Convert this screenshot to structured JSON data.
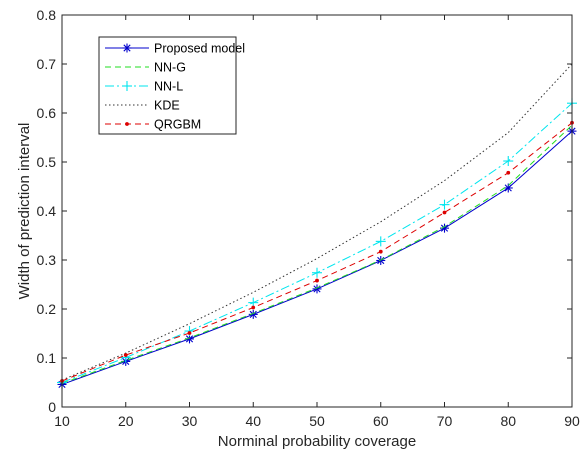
{
  "chart_data": {
    "type": "line",
    "title": "",
    "xlabel": "Norminal probability coverage",
    "ylabel": "Width of prediction interval",
    "x": [
      10,
      20,
      30,
      40,
      50,
      60,
      70,
      80,
      90
    ],
    "xlim": [
      10,
      90
    ],
    "ylim": [
      0,
      0.8
    ],
    "xticks": [
      "10",
      "20",
      "30",
      "40",
      "50",
      "60",
      "70",
      "80",
      "90"
    ],
    "yticks": [
      "0",
      "0.1",
      "0.2",
      "0.3",
      "0.4",
      "0.5",
      "0.6",
      "0.7",
      "0.8"
    ],
    "grid": false,
    "legend_position": "top-left",
    "series": [
      {
        "name": "Proposed model",
        "color": "#0000cc",
        "line": "solid",
        "marker": "asterisk",
        "values": [
          0.046,
          0.093,
          0.139,
          0.189,
          0.241,
          0.299,
          0.365,
          0.447,
          0.563
        ]
      },
      {
        "name": "NN-G",
        "color": "#22dd22",
        "line": "dashed",
        "marker": "none",
        "values": [
          0.048,
          0.095,
          0.141,
          0.191,
          0.243,
          0.3,
          0.368,
          0.452,
          0.575
        ]
      },
      {
        "name": "NN-L",
        "color": "#00e5ee",
        "line": "dashdot",
        "marker": "plus",
        "values": [
          0.05,
          0.101,
          0.155,
          0.213,
          0.274,
          0.338,
          0.413,
          0.502,
          0.62
        ]
      },
      {
        "name": "KDE",
        "color": "#333333",
        "line": "dotted",
        "marker": "none",
        "values": [
          0.055,
          0.11,
          0.17,
          0.234,
          0.303,
          0.378,
          0.462,
          0.56,
          0.7
        ]
      },
      {
        "name": "QRGBM",
        "color": "#dd0000",
        "line": "dashed",
        "marker": "dot",
        "values": [
          0.053,
          0.106,
          0.151,
          0.203,
          0.258,
          0.317,
          0.397,
          0.478,
          0.58
        ]
      }
    ]
  }
}
